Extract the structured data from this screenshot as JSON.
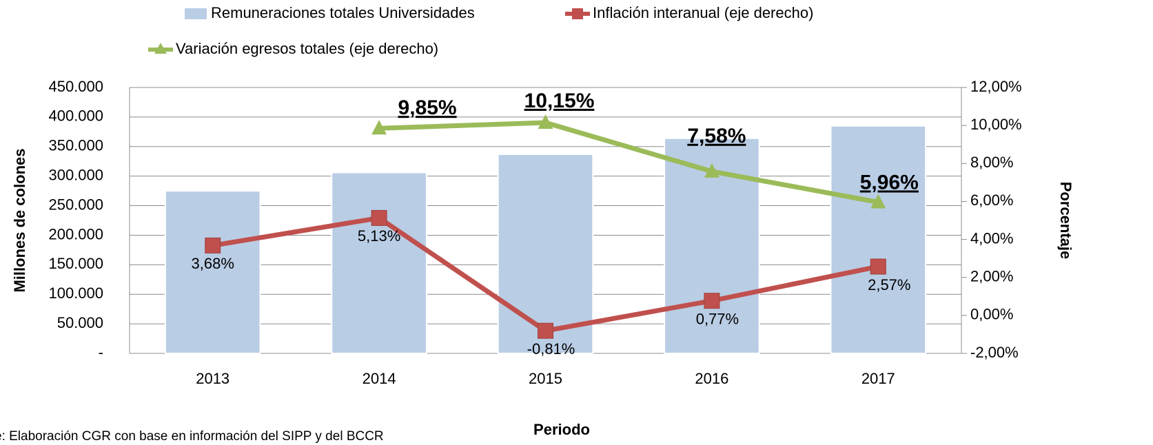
{
  "chart_data": {
    "type": "bar_line",
    "categories": [
      "2013",
      "2014",
      "2015",
      "2016",
      "2017"
    ],
    "series": [
      {
        "name": "Remuneraciones totales Universidades",
        "color": "#b9cde5",
        "type": "bar",
        "values": [
          275000,
          306000,
          337000,
          364000,
          385000
        ]
      },
      {
        "name": "Inflación interanual (eje derecho)",
        "color": "#c0504d",
        "type": "line",
        "axis": "y2",
        "values": [
          3.68,
          5.13,
          -0.81,
          0.77,
          2.57
        ],
        "value_labels": [
          "3,68%",
          "5,13%",
          "-0,81%",
          "0,77%",
          "2,57%"
        ]
      },
      {
        "name": "Variación egresos totales (eje derecho)",
        "color": "#9bbb59",
        "type": "line",
        "axis": "y2",
        "values": [
          null,
          9.85,
          10.15,
          7.58,
          5.96
        ],
        "value_labels": [
          null,
          "9,85%",
          "10,15%",
          "7,58%",
          "5,96%"
        ]
      }
    ],
    "ylabel": "Millones de colones",
    "y2label": "Porcentaje",
    "xlabel": "Periodo",
    "ylim": [
      0,
      450000
    ],
    "yticks": [
      {
        "value": 0,
        "label": "-"
      },
      {
        "value": 50000,
        "label": "50.000"
      },
      {
        "value": 100000,
        "label": "100.000"
      },
      {
        "value": 150000,
        "label": "150.000"
      },
      {
        "value": 200000,
        "label": "200.000"
      },
      {
        "value": 250000,
        "label": "250.000"
      },
      {
        "value": 300000,
        "label": "300.000"
      },
      {
        "value": 350000,
        "label": "350.000"
      },
      {
        "value": 400000,
        "label": "400.000"
      },
      {
        "value": 450000,
        "label": "450.000"
      }
    ],
    "y2lim": [
      -2,
      12
    ],
    "y2ticks": [
      {
        "value": -2,
        "label": "-2,00%"
      },
      {
        "value": 0,
        "label": "0,00%"
      },
      {
        "value": 2,
        "label": "2,00%"
      },
      {
        "value": 4,
        "label": "4,00%"
      },
      {
        "value": 6,
        "label": "6,00%"
      },
      {
        "value": 8,
        "label": "8,00%"
      },
      {
        "value": 10,
        "label": "10,00%"
      },
      {
        "value": 12,
        "label": "12,00%"
      }
    ],
    "grid": true,
    "legend": "top",
    "note": "e: Elaboración CGR con base en información del SIPP y del BCCR"
  }
}
